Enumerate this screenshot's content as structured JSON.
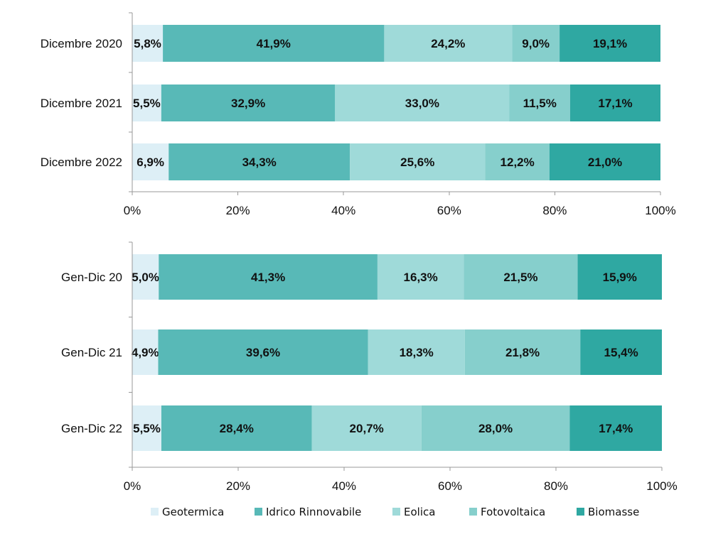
{
  "chart_data": [
    {
      "type": "bar",
      "orientation": "horizontal",
      "stacked": true,
      "normalized": true,
      "categories": [
        "Dicembre 2020",
        "Dicembre 2021",
        "Dicembre 2022"
      ],
      "series": [
        {
          "name": "Geotermica",
          "values": [
            5.8,
            5.5,
            6.9
          ],
          "labels": [
            "5,8%",
            "5,5%",
            "6,9%"
          ]
        },
        {
          "name": "Idrico Rinnovabile",
          "values": [
            41.9,
            32.9,
            34.3
          ],
          "labels": [
            "41,9%",
            "32,9%",
            "34,3%"
          ]
        },
        {
          "name": "Eolica",
          "values": [
            24.2,
            33.0,
            25.6
          ],
          "labels": [
            "24,2%",
            "33,0%",
            "25,6%"
          ]
        },
        {
          "name": "Fotovoltaica",
          "values": [
            9.0,
            11.5,
            12.2
          ],
          "labels": [
            "9,0%",
            "11,5%",
            "12,2%"
          ]
        },
        {
          "name": "Biomasse",
          "values": [
            19.1,
            17.1,
            21.0
          ],
          "labels": [
            "19,1%",
            "17,1%",
            "21,0%"
          ]
        }
      ],
      "xlim": [
        0,
        100
      ],
      "xticks": [
        "0%",
        "20%",
        "40%",
        "60%",
        "80%",
        "100%"
      ],
      "grid": false
    },
    {
      "type": "bar",
      "orientation": "horizontal",
      "stacked": true,
      "normalized": true,
      "categories": [
        "Gen-Dic 20",
        "Gen-Dic 21",
        "Gen-Dic 22"
      ],
      "series": [
        {
          "name": "Geotermica",
          "values": [
            5.0,
            4.9,
            5.5
          ],
          "labels": [
            "5,0%",
            "4,9%",
            "5,5%"
          ]
        },
        {
          "name": "Idrico Rinnovabile",
          "values": [
            41.3,
            39.6,
            28.4
          ],
          "labels": [
            "41,3%",
            "39,6%",
            "28,4%"
          ]
        },
        {
          "name": "Eolica",
          "values": [
            16.3,
            18.3,
            20.7
          ],
          "labels": [
            "16,3%",
            "18,3%",
            "20,7%"
          ]
        },
        {
          "name": "Fotovoltaica",
          "values": [
            21.5,
            21.8,
            28.0
          ],
          "labels": [
            "21,5%",
            "21,8%",
            "28,0%"
          ]
        },
        {
          "name": "Biomasse",
          "values": [
            15.9,
            15.4,
            17.4
          ],
          "labels": [
            "15,9%",
            "15,4%",
            "17,4%"
          ]
        }
      ],
      "xlim": [
        0,
        100
      ],
      "xticks": [
        "0%",
        "20%",
        "40%",
        "60%",
        "80%",
        "100%"
      ],
      "grid": false
    }
  ],
  "legend": {
    "position": "bottom",
    "items": [
      {
        "name": "Geotermica",
        "color": "#DDEFF6"
      },
      {
        "name": "Idrico Rinnovabile",
        "color": "#58B9B7"
      },
      {
        "name": "Eolica",
        "color": "#9FDAD9"
      },
      {
        "name": "Fotovoltaica",
        "color": "#86CFCC"
      },
      {
        "name": "Biomasse",
        "color": "#2FA8A2"
      }
    ]
  }
}
